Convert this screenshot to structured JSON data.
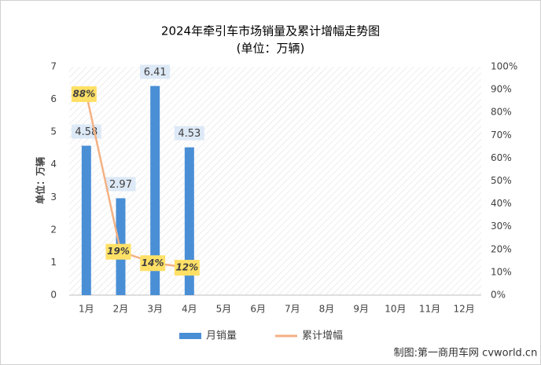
{
  "chart_data": {
    "type": "bar",
    "title": "2024年牵引车市场销量及累计增幅走势图",
    "subtitle": "(单位：万辆)",
    "y_label": "单位：万辆",
    "source": "制图:第一商用车网 cvworld.cn",
    "categories": [
      "1月",
      "2月",
      "3月",
      "4月",
      "5月",
      "6月",
      "7月",
      "8月",
      "9月",
      "10月",
      "11月",
      "12月"
    ],
    "series": [
      {
        "name": "月销量",
        "type": "bar",
        "color": "#4a8fd6",
        "values": [
          4.58,
          2.97,
          6.41,
          4.53,
          null,
          null,
          null,
          null,
          null,
          null,
          null,
          null
        ]
      },
      {
        "name": "累计增幅",
        "type": "line",
        "axis": "y2",
        "color": "#f4b183",
        "values": [
          88,
          19,
          14,
          12,
          null,
          null,
          null,
          null,
          null,
          null,
          null,
          null
        ],
        "value_labels": [
          "88%",
          "19%",
          "14%",
          "12%",
          null,
          null,
          null,
          null,
          null,
          null,
          null,
          null
        ]
      }
    ],
    "ylim": [
      0,
      7
    ],
    "yticks": [
      0,
      1,
      2,
      3,
      4,
      5,
      6,
      7
    ],
    "y2lim": [
      0,
      100
    ],
    "y2ticks": [
      {
        "value": 0,
        "label": "0%"
      },
      {
        "value": 10,
        "label": "10%"
      },
      {
        "value": 20,
        "label": "20%"
      },
      {
        "value": 30,
        "label": "30%"
      },
      {
        "value": 40,
        "label": "40%"
      },
      {
        "value": 50,
        "label": "50%"
      },
      {
        "value": 60,
        "label": "60%"
      },
      {
        "value": 70,
        "label": "70%"
      },
      {
        "value": 80,
        "label": "80%"
      },
      {
        "value": 90,
        "label": "90%"
      },
      {
        "value": 100,
        "label": "100%"
      }
    ],
    "grid": false
  }
}
